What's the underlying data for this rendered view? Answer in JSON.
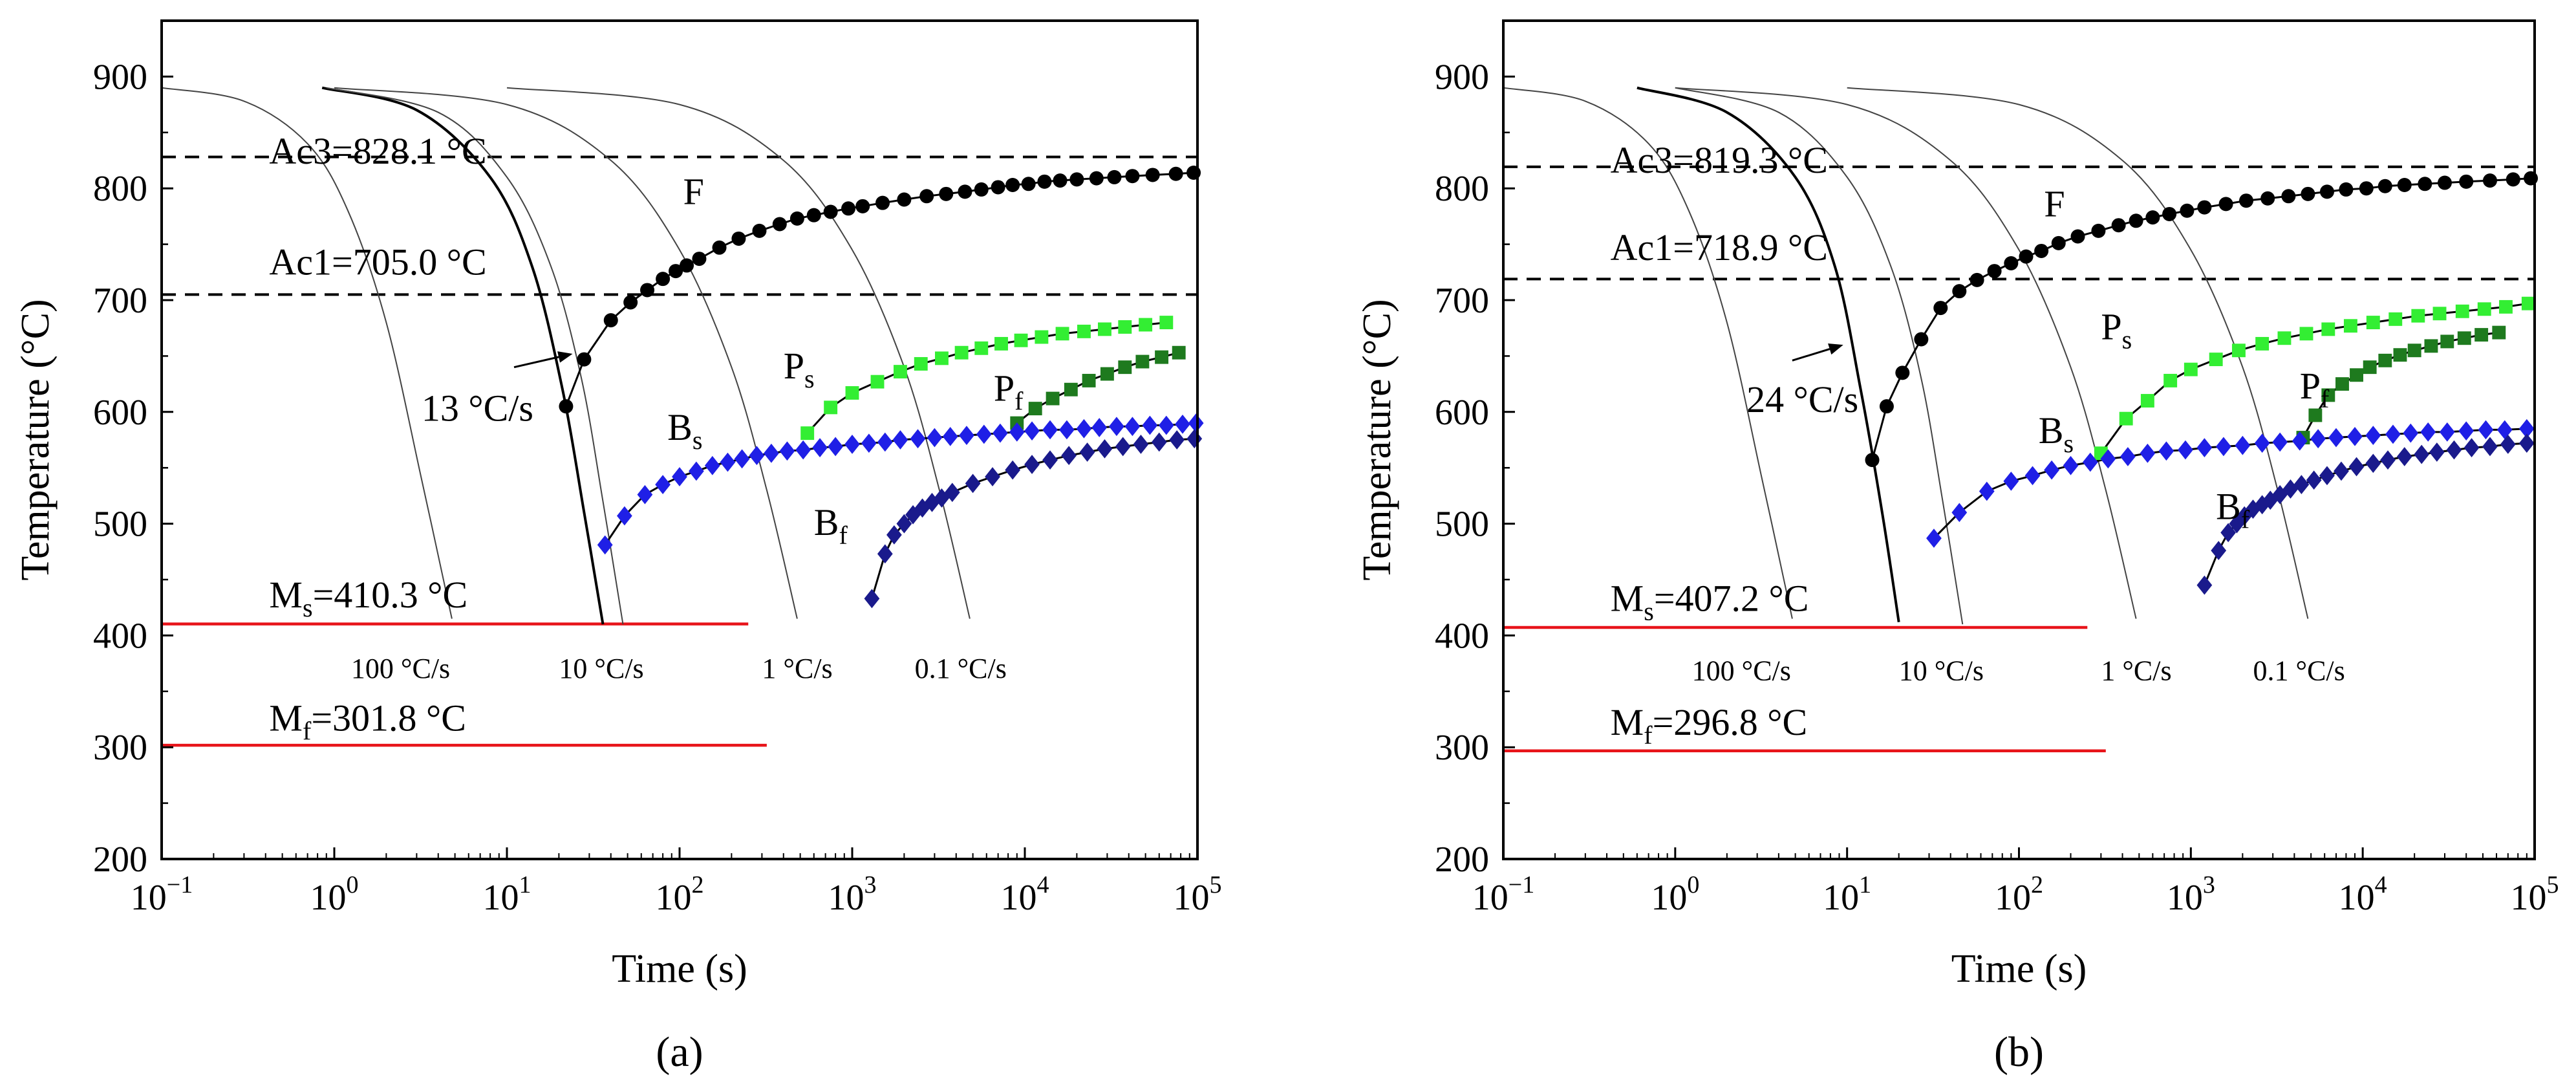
{
  "chart_data": [
    {
      "type": "line",
      "panel_label": "(a)",
      "title": "",
      "xlabel": "Time (s)",
      "ylabel": "Temperature (°C)",
      "xscale": "log",
      "xlim": [
        0.1,
        100000
      ],
      "ylim": [
        200,
        950
      ],
      "x_tick_values": [
        0.1,
        1,
        10,
        100,
        1000,
        10000,
        100000
      ],
      "x_tick_labels": [
        [
          "10",
          "−1"
        ],
        [
          "10",
          "0"
        ],
        [
          "10",
          "1"
        ],
        [
          "10",
          "2"
        ],
        [
          "10",
          "3"
        ],
        [
          "10",
          "4"
        ],
        [
          "10",
          "5"
        ]
      ],
      "y_ticks": [
        200,
        300,
        400,
        500,
        600,
        700,
        800,
        900
      ],
      "y_tick_labels": [
        "200",
        "300",
        "400",
        "500",
        "600",
        "700",
        "800",
        "900"
      ],
      "reference_lines": [
        {
          "name": "Ac3",
          "label": "Ac3=828.1 °C",
          "value": 828.1,
          "style": "dashed",
          "color": "#000000",
          "x_range": [
            0.1,
            100000
          ]
        },
        {
          "name": "Ac1",
          "label": "Ac1=705.0 °C",
          "value": 705.0,
          "style": "dashed",
          "color": "#000000",
          "x_range": [
            0.1,
            100000
          ]
        },
        {
          "name": "Ms",
          "label_main": "M",
          "label_sub": "s",
          "label_rest": "=410.3 °C",
          "value": 410.3,
          "style": "solid",
          "color": "#e8141a",
          "x_range": [
            0.1,
            250
          ]
        },
        {
          "name": "Mf",
          "label_main": "M",
          "label_sub": "f",
          "label_rest": "=301.8 °C",
          "value": 301.8,
          "style": "solid",
          "color": "#e8141a",
          "x_range": [
            0.1,
            320
          ]
        }
      ],
      "cooling_curves": [
        {
          "rate": "100 °C/s",
          "x": [
            0.1,
            0.3,
            0.7,
            1.2,
            2.0,
            3.2,
            4.8
          ],
          "y": [
            890,
            878,
            840,
            780,
            680,
            540,
            415
          ],
          "width": "thin"
        },
        {
          "rate": "13 °C/s",
          "x": [
            0.85,
            3,
            8,
            14,
            21,
            28,
            36
          ],
          "y": [
            890,
            870,
            810,
            730,
            620,
            510,
            410
          ],
          "width": "thick"
        },
        {
          "rate": "10 °C/s",
          "x": [
            0.9,
            4,
            10,
            18,
            27,
            36,
            47
          ],
          "y": [
            890,
            868,
            810,
            730,
            630,
            520,
            410
          ],
          "width": "thin"
        },
        {
          "rate": "1 °C/s",
          "x": [
            1,
            10,
            40,
            100,
            200,
            320,
            480
          ],
          "y": [
            890,
            875,
            825,
            745,
            640,
            530,
            415
          ],
          "width": "thin"
        },
        {
          "rate": "0.1 °C/s",
          "x": [
            10,
            100,
            400,
            1000,
            2000,
            3200,
            4800
          ],
          "y": [
            890,
            875,
            825,
            745,
            640,
            530,
            415
          ],
          "width": "thin"
        }
      ],
      "series": [
        {
          "name": "F",
          "label": "F",
          "marker": "circle",
          "color": "#000000",
          "x": [
            22,
            28,
            40,
            52,
            65,
            80,
            95,
            110,
            130,
            170,
            220,
            290,
            380,
            480,
            600,
            750,
            950,
            1150,
            1500,
            2000,
            2700,
            3500,
            4500,
            5600,
            7000,
            8500,
            10500,
            13000,
            16000,
            20000,
            26000,
            33000,
            42000,
            55000,
            75000,
            95000
          ],
          "y": [
            605,
            647,
            682,
            698,
            709,
            719,
            726,
            731,
            737,
            747,
            755,
            762,
            768,
            773,
            776,
            779,
            782,
            784,
            787,
            790,
            793,
            795,
            797,
            799,
            801,
            803,
            804,
            806,
            807,
            808,
            809,
            810,
            811,
            812,
            813,
            814
          ]
        },
        {
          "name": "Ps",
          "label_main": "P",
          "label_sub": "s",
          "marker": "square",
          "color": "#33ee33",
          "x": [
            550,
            750,
            1000,
            1400,
            1900,
            2500,
            3300,
            4300,
            5600,
            7300,
            9500,
            12500,
            16500,
            22000,
            29000,
            38000,
            50000,
            66000
          ],
          "y": [
            581,
            604,
            617,
            627,
            636,
            643,
            648,
            653,
            657,
            661,
            664,
            667,
            670,
            672,
            674,
            676,
            678,
            680
          ]
        },
        {
          "name": "Pf",
          "label_main": "P",
          "label_sub": "f",
          "marker": "square",
          "color": "#1e7a1e",
          "x": [
            9000,
            11500,
            14500,
            18500,
            23500,
            30000,
            38000,
            48000,
            62000,
            78000
          ],
          "y": [
            590,
            603,
            612,
            620,
            628,
            634,
            640,
            645,
            649,
            653
          ]
        },
        {
          "name": "Bs",
          "label_main": "B",
          "label_sub": "s",
          "marker": "diamond",
          "color": "#1f1fe6",
          "x": [
            37,
            48,
            63,
            80,
            100,
            125,
            155,
            190,
            230,
            280,
            340,
            420,
            520,
            650,
            800,
            1000,
            1250,
            1550,
            1900,
            2400,
            3000,
            3700,
            4600,
            5800,
            7200,
            9000,
            11000,
            14000,
            17500,
            22000,
            27000,
            34000,
            42000,
            53000,
            66000,
            82000,
            98000
          ],
          "y": [
            481,
            507,
            526,
            535,
            542,
            547,
            552,
            555,
            558,
            561,
            563,
            565,
            566,
            568,
            569,
            571,
            572,
            573,
            575,
            576,
            577,
            578,
            579,
            580,
            581,
            582,
            583,
            584,
            584,
            585,
            586,
            587,
            587,
            588,
            588,
            589,
            590
          ]
        },
        {
          "name": "Bf",
          "label_main": "B",
          "label_sub": "f",
          "marker": "diamond",
          "color": "#1a1a8c",
          "x": [
            1300,
            1550,
            1750,
            2000,
            2250,
            2550,
            2900,
            3300,
            3800,
            5000,
            6500,
            8500,
            11000,
            14000,
            18000,
            23000,
            29000,
            37000,
            47000,
            60000,
            76000,
            96000
          ],
          "y": [
            433,
            473,
            490,
            500,
            508,
            514,
            519,
            523,
            528,
            536,
            542,
            548,
            553,
            557,
            561,
            564,
            567,
            569,
            571,
            573,
            575,
            576
          ]
        }
      ],
      "annotations": {
        "rate_labels": [
          "100 °C/s",
          "10 °C/s",
          "1 °C/s",
          "0.1 °C/s"
        ],
        "critical_rate": "13 °C/s"
      }
    },
    {
      "type": "line",
      "panel_label": "(b)",
      "title": "",
      "xlabel": "Time (s)",
      "ylabel": "Temperature (°C)",
      "xscale": "log",
      "xlim": [
        0.1,
        100000
      ],
      "ylim": [
        200,
        950
      ],
      "x_tick_values": [
        0.1,
        1,
        10,
        100,
        1000,
        10000,
        100000
      ],
      "x_tick_labels": [
        [
          "10",
          "−1"
        ],
        [
          "10",
          "0"
        ],
        [
          "10",
          "1"
        ],
        [
          "10",
          "2"
        ],
        [
          "10",
          "3"
        ],
        [
          "10",
          "4"
        ],
        [
          "10",
          "5"
        ]
      ],
      "y_ticks": [
        200,
        300,
        400,
        500,
        600,
        700,
        800,
        900
      ],
      "y_tick_labels": [
        "200",
        "300",
        "400",
        "500",
        "600",
        "700",
        "800",
        "900"
      ],
      "reference_lines": [
        {
          "name": "Ac3",
          "label": "Ac3=819.3 °C",
          "value": 819.3,
          "style": "dashed",
          "color": "#000000",
          "x_range": [
            0.1,
            100000
          ]
        },
        {
          "name": "Ac1",
          "label": "Ac1=718.9 °C",
          "value": 718.9,
          "style": "dashed",
          "color": "#000000",
          "x_range": [
            0.1,
            100000
          ]
        },
        {
          "name": "Ms",
          "label_main": "M",
          "label_sub": "s",
          "label_rest": "=407.2 °C",
          "value": 407.2,
          "style": "solid",
          "color": "#e8141a",
          "x_range": [
            0.1,
            250
          ]
        },
        {
          "name": "Mf",
          "label_main": "M",
          "label_sub": "f",
          "label_rest": "=296.8 °C",
          "value": 296.8,
          "style": "solid",
          "color": "#e8141a",
          "x_range": [
            0.1,
            320
          ]
        }
      ],
      "cooling_curves": [
        {
          "rate": "100 °C/s",
          "x": [
            0.1,
            0.3,
            0.7,
            1.2,
            2.0,
            3.2,
            4.8
          ],
          "y": [
            890,
            878,
            840,
            780,
            680,
            540,
            415
          ],
          "width": "thin"
        },
        {
          "rate": "24 °C/s",
          "x": [
            0.6,
            2,
            5,
            8.5,
            12,
            16,
            20
          ],
          "y": [
            890,
            868,
            810,
            730,
            620,
            510,
            412
          ],
          "width": "thick"
        },
        {
          "rate": "10 °C/s",
          "x": [
            1,
            4,
            10,
            18,
            27,
            36,
            47
          ],
          "y": [
            890,
            868,
            810,
            730,
            630,
            520,
            410
          ],
          "width": "thin"
        },
        {
          "rate": "1 °C/s",
          "x": [
            1,
            10,
            40,
            100,
            200,
            320,
            480
          ],
          "y": [
            890,
            875,
            825,
            745,
            640,
            530,
            415
          ],
          "width": "thin"
        },
        {
          "rate": "0.1 °C/s",
          "x": [
            10,
            100,
            400,
            1000,
            2000,
            3200,
            4800
          ],
          "y": [
            890,
            875,
            825,
            745,
            640,
            530,
            415
          ],
          "width": "thin"
        }
      ],
      "series": [
        {
          "name": "F",
          "label": "F",
          "marker": "circle",
          "color": "#000000",
          "x": [
            14,
            17,
            21,
            27,
            35,
            45,
            57,
            72,
            90,
            110,
            135,
            170,
            220,
            290,
            380,
            480,
            600,
            750,
            950,
            1200,
            1600,
            2100,
            2800,
            3700,
            4800,
            6200,
            8000,
            10500,
            13500,
            17500,
            23000,
            30000,
            40000,
            55000,
            75000,
            95000
          ],
          "y": [
            557,
            605,
            635,
            665,
            693,
            708,
            718,
            726,
            733,
            739,
            744,
            751,
            757,
            762,
            767,
            771,
            774,
            777,
            780,
            783,
            786,
            789,
            791,
            793,
            795,
            797,
            799,
            800,
            802,
            803,
            804,
            805,
            806,
            807,
            808,
            809
          ]
        },
        {
          "name": "Ps",
          "label_main": "P",
          "label_sub": "s",
          "marker": "square",
          "color": "#33ee33",
          "x": [
            300,
            420,
            560,
            760,
            1000,
            1400,
            1900,
            2600,
            3500,
            4700,
            6300,
            8500,
            11500,
            15500,
            21000,
            28000,
            38000,
            51000,
            68000,
            92000
          ],
          "y": [
            563,
            594,
            610,
            628,
            638,
            647,
            655,
            661,
            666,
            670,
            674,
            677,
            680,
            683,
            686,
            688,
            690,
            692,
            694,
            697
          ]
        },
        {
          "name": "Pf",
          "label_main": "P",
          "label_sub": "f",
          "marker": "square",
          "color": "#1e7a1e",
          "x": [
            4500,
            5300,
            6300,
            7600,
            9200,
            11000,
            13500,
            16500,
            20000,
            25000,
            31000,
            39000,
            49000,
            62000
          ],
          "y": [
            577,
            597,
            615,
            625,
            633,
            640,
            646,
            651,
            655,
            659,
            663,
            666,
            669,
            671
          ]
        },
        {
          "name": "Bs",
          "label_main": "B",
          "label_sub": "s",
          "marker": "diamond",
          "color": "#1f1fe6",
          "x": [
            32,
            45,
            65,
            90,
            120,
            155,
            200,
            260,
            330,
            430,
            560,
            720,
            930,
            1200,
            1550,
            2000,
            2600,
            3300,
            4300,
            5500,
            7000,
            9000,
            11500,
            15000,
            19000,
            24000,
            31000,
            40000,
            52000,
            67000,
            90000
          ],
          "y": [
            487,
            510,
            529,
            538,
            543,
            548,
            552,
            555,
            558,
            560,
            563,
            565,
            566,
            568,
            569,
            570,
            572,
            573,
            574,
            576,
            577,
            578,
            579,
            580,
            581,
            582,
            582,
            583,
            584,
            584,
            585
          ]
        },
        {
          "name": "Bf",
          "label_main": "B",
          "label_sub": "f",
          "marker": "diamond",
          "color": "#1a1a8c",
          "x": [
            1200,
            1450,
            1650,
            1850,
            2050,
            2300,
            2600,
            2900,
            3300,
            3800,
            4400,
            5200,
            6200,
            7500,
            9200,
            11500,
            14000,
            17500,
            22000,
            27000,
            34000,
            43000,
            55000,
            70000,
            90000
          ],
          "y": [
            445,
            476,
            492,
            500,
            507,
            513,
            517,
            521,
            526,
            531,
            535,
            539,
            543,
            547,
            551,
            554,
            557,
            560,
            562,
            564,
            566,
            568,
            569,
            571,
            572
          ]
        }
      ],
      "annotations": {
        "rate_labels": [
          "100 °C/s",
          "10 °C/s",
          "1 °C/s",
          "0.1 °C/s"
        ],
        "critical_rate": "24 °C/s"
      }
    }
  ]
}
